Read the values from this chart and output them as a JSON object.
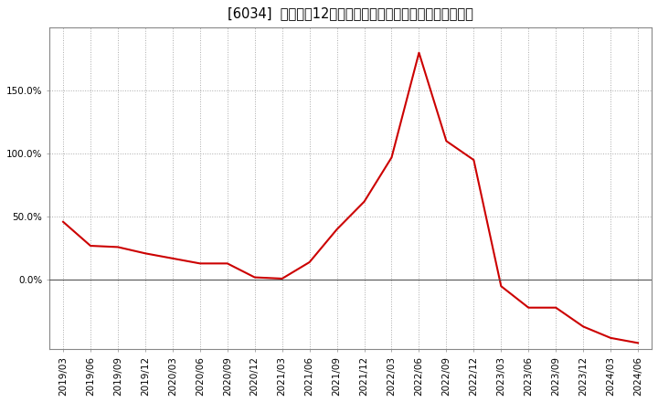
{
  "title": "[6034]  売上高の12か月移動合計の対前年同期増減率の推移",
  "dates": [
    "2019/03",
    "2019/06",
    "2019/09",
    "2019/12",
    "2020/03",
    "2020/06",
    "2020/09",
    "2020/12",
    "2021/03",
    "2021/06",
    "2021/09",
    "2021/12",
    "2022/03",
    "2022/06",
    "2022/09",
    "2022/12",
    "2023/03",
    "2023/06",
    "2023/09",
    "2023/12",
    "2024/03",
    "2024/06"
  ],
  "values": [
    0.46,
    0.27,
    0.26,
    0.21,
    0.17,
    0.13,
    0.13,
    0.02,
    0.01,
    0.14,
    0.4,
    0.62,
    0.97,
    1.8,
    1.1,
    0.95,
    -0.05,
    -0.22,
    -0.22,
    -0.37,
    -0.46,
    -0.5
  ],
  "line_color": "#cc0000",
  "background_color": "#ffffff",
  "plot_bg_color": "#ffffff",
  "grid_color": "#aaaaaa",
  "zero_line_color": "#555555",
  "ylim_min": -0.55,
  "ylim_max": 2.0,
  "yticks": [
    0.0,
    0.5,
    1.0,
    1.5
  ],
  "ytick_labels": [
    "0.0%",
    "50.0%",
    "100.0%",
    "150.0%"
  ],
  "title_fontsize": 10.5,
  "tick_fontsize": 7.5
}
